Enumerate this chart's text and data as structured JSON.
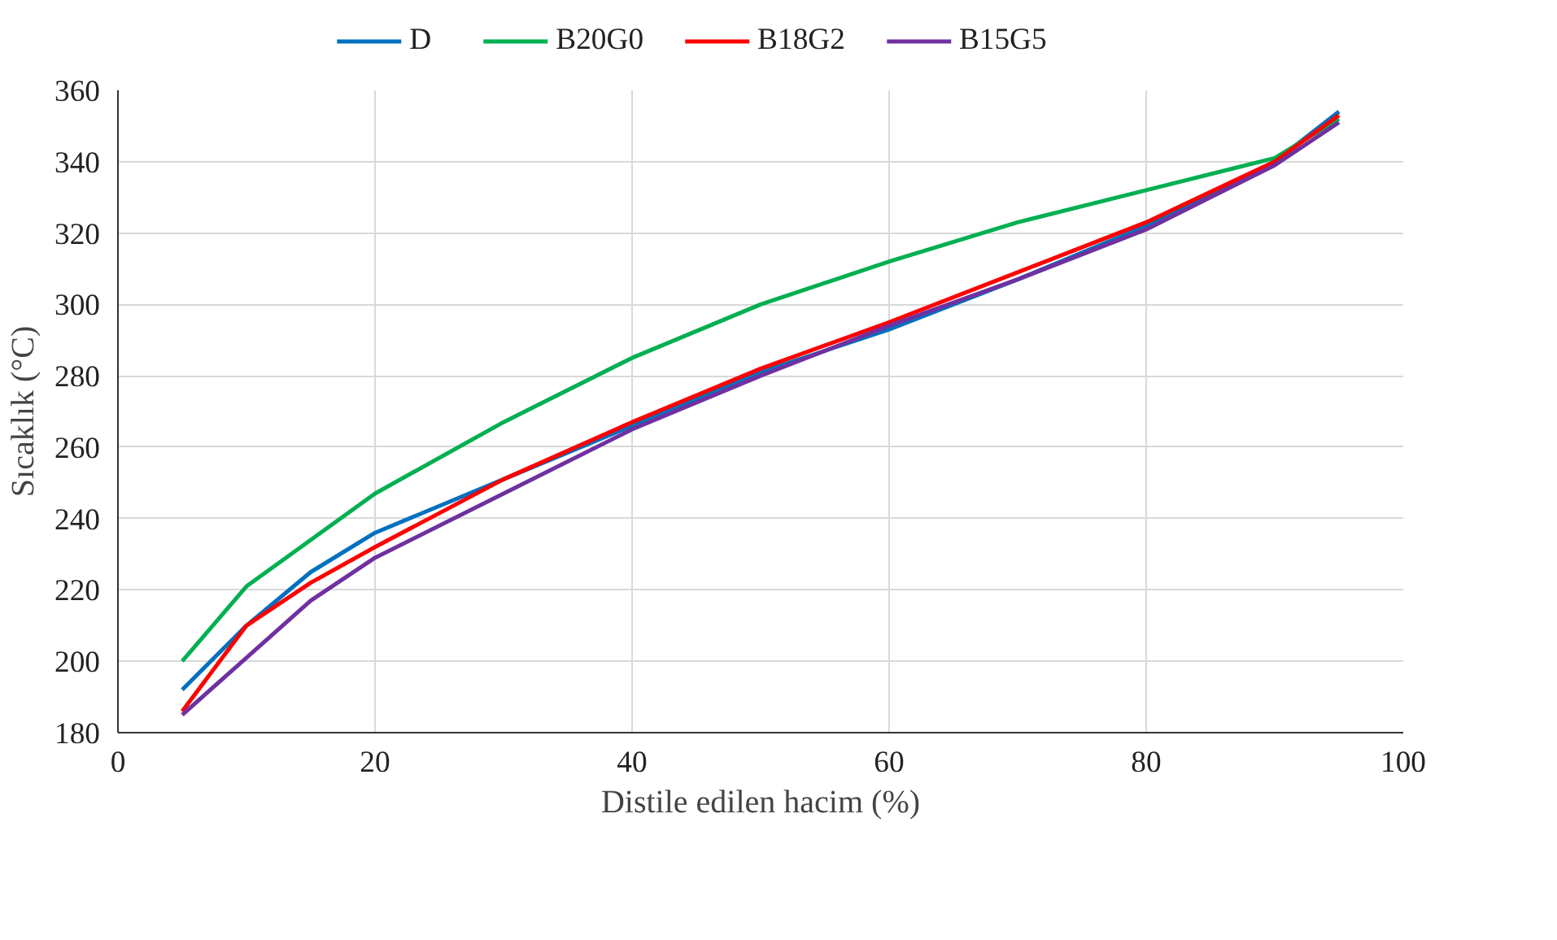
{
  "chart_data": {
    "type": "line",
    "xlabel": "Distile edilen hacim (%)",
    "ylabel": "Sıcaklık (°C)",
    "x": [
      5,
      10,
      15,
      20,
      30,
      40,
      50,
      60,
      70,
      80,
      90,
      95
    ],
    "series": [
      {
        "name": "D",
        "color": "#0070c0",
        "values": [
          192,
          210,
          225,
          236,
          251,
          266,
          281,
          293,
          307,
          322,
          340,
          354
        ]
      },
      {
        "name": "B20G0",
        "color": "#00b050",
        "values": [
          200,
          221,
          234,
          247,
          267,
          285,
          300,
          312,
          323,
          332,
          341,
          352
        ]
      },
      {
        "name": "B18G2",
        "color": "#ff0000",
        "values": [
          186,
          210,
          222,
          232,
          251,
          267,
          282,
          295,
          309,
          323,
          340,
          353
        ]
      },
      {
        "name": "B15G5",
        "color": "#7030a0",
        "values": [
          185,
          201,
          217,
          229,
          247,
          265,
          280,
          294,
          307,
          321,
          339,
          351
        ]
      }
    ],
    "xlim": [
      0,
      100
    ],
    "xticks": [
      0,
      20,
      40,
      60,
      80,
      100
    ],
    "ylim": [
      180,
      360
    ],
    "yticks": [
      180,
      200,
      220,
      240,
      260,
      280,
      300,
      320,
      340,
      360
    ],
    "grid": true,
    "legend": "top",
    "marker": "none",
    "line_style": "solid"
  }
}
